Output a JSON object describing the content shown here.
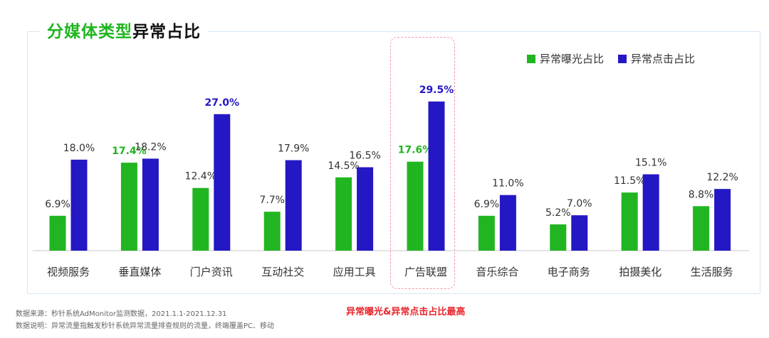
{
  "title": {
    "part1": "分媒体类型",
    "part2": "异常占比"
  },
  "colors": {
    "exposure": "#22b522",
    "click": "#2417c4",
    "accent_green": "#1fb51f",
    "accent_blue": "#2417c4"
  },
  "legend": [
    "异常曝光占比",
    "异常点击占比"
  ],
  "callout": "异常曝光&异常点击占比最高",
  "notes": [
    "数据来源：秒针系统AdMonitor监测数据，2021.1.1-2021.12.31",
    "数据说明：异常流量指触发秒针系统异常流量排查规则的流量，终端覆盖PC、移动"
  ],
  "chart_data": {
    "type": "bar",
    "title": "分媒体类型异常占比",
    "categories": [
      "视频服务",
      "垂直媒体",
      "门户资讯",
      "互动社交",
      "应用工具",
      "广告联盟",
      "音乐综合",
      "电子商务",
      "拍摄美化",
      "生活服务"
    ],
    "series": [
      {
        "name": "异常曝光占比",
        "values": [
          6.9,
          17.4,
          12.4,
          7.7,
          14.5,
          17.6,
          6.9,
          5.2,
          11.5,
          8.8
        ],
        "labels": [
          "6.9%",
          "17.4%",
          "12.4%",
          "7.7%",
          "14.5%",
          "17.6%",
          "6.9%",
          "5.2%",
          "11.5%",
          "8.8%"
        ]
      },
      {
        "name": "异常点击占比",
        "values": [
          18.0,
          18.2,
          27.0,
          17.9,
          16.5,
          29.5,
          11.0,
          7.0,
          15.1,
          12.2
        ],
        "labels": [
          "18.0%",
          "18.2%",
          "27.0%",
          "17.9%",
          "16.5%",
          "29.5%",
          "11.0%",
          "7.0%",
          "15.1%",
          "12.2%"
        ]
      }
    ],
    "highlight_labels": {
      "exposure": [
        1,
        5
      ],
      "click": [
        2,
        5
      ]
    },
    "highlight_category": 5,
    "ylim": [
      0,
      30
    ],
    "grid": false,
    "legend_position": "top-right"
  }
}
